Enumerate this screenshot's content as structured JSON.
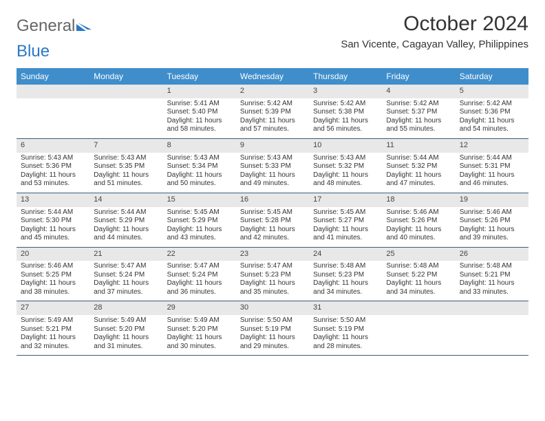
{
  "brand": {
    "part1": "General",
    "part2": "Blue"
  },
  "title": "October 2024",
  "subtitle": "San Vicente, Cagayan Valley, Philippines",
  "header_bg": "#3f8ecb",
  "header_fg": "#ffffff",
  "daynum_bg": "#e8e8e8",
  "week_border": "#3a5d7a",
  "day_names": [
    "Sunday",
    "Monday",
    "Tuesday",
    "Wednesday",
    "Thursday",
    "Friday",
    "Saturday"
  ],
  "weeks": [
    [
      {
        "n": "",
        "sunrise": "",
        "sunset": "",
        "daylight": ""
      },
      {
        "n": "",
        "sunrise": "",
        "sunset": "",
        "daylight": ""
      },
      {
        "n": "1",
        "sunrise": "Sunrise: 5:41 AM",
        "sunset": "Sunset: 5:40 PM",
        "daylight": "Daylight: 11 hours and 58 minutes."
      },
      {
        "n": "2",
        "sunrise": "Sunrise: 5:42 AM",
        "sunset": "Sunset: 5:39 PM",
        "daylight": "Daylight: 11 hours and 57 minutes."
      },
      {
        "n": "3",
        "sunrise": "Sunrise: 5:42 AM",
        "sunset": "Sunset: 5:38 PM",
        "daylight": "Daylight: 11 hours and 56 minutes."
      },
      {
        "n": "4",
        "sunrise": "Sunrise: 5:42 AM",
        "sunset": "Sunset: 5:37 PM",
        "daylight": "Daylight: 11 hours and 55 minutes."
      },
      {
        "n": "5",
        "sunrise": "Sunrise: 5:42 AM",
        "sunset": "Sunset: 5:36 PM",
        "daylight": "Daylight: 11 hours and 54 minutes."
      }
    ],
    [
      {
        "n": "6",
        "sunrise": "Sunrise: 5:43 AM",
        "sunset": "Sunset: 5:36 PM",
        "daylight": "Daylight: 11 hours and 53 minutes."
      },
      {
        "n": "7",
        "sunrise": "Sunrise: 5:43 AM",
        "sunset": "Sunset: 5:35 PM",
        "daylight": "Daylight: 11 hours and 51 minutes."
      },
      {
        "n": "8",
        "sunrise": "Sunrise: 5:43 AM",
        "sunset": "Sunset: 5:34 PM",
        "daylight": "Daylight: 11 hours and 50 minutes."
      },
      {
        "n": "9",
        "sunrise": "Sunrise: 5:43 AM",
        "sunset": "Sunset: 5:33 PM",
        "daylight": "Daylight: 11 hours and 49 minutes."
      },
      {
        "n": "10",
        "sunrise": "Sunrise: 5:43 AM",
        "sunset": "Sunset: 5:32 PM",
        "daylight": "Daylight: 11 hours and 48 minutes."
      },
      {
        "n": "11",
        "sunrise": "Sunrise: 5:44 AM",
        "sunset": "Sunset: 5:32 PM",
        "daylight": "Daylight: 11 hours and 47 minutes."
      },
      {
        "n": "12",
        "sunrise": "Sunrise: 5:44 AM",
        "sunset": "Sunset: 5:31 PM",
        "daylight": "Daylight: 11 hours and 46 minutes."
      }
    ],
    [
      {
        "n": "13",
        "sunrise": "Sunrise: 5:44 AM",
        "sunset": "Sunset: 5:30 PM",
        "daylight": "Daylight: 11 hours and 45 minutes."
      },
      {
        "n": "14",
        "sunrise": "Sunrise: 5:44 AM",
        "sunset": "Sunset: 5:29 PM",
        "daylight": "Daylight: 11 hours and 44 minutes."
      },
      {
        "n": "15",
        "sunrise": "Sunrise: 5:45 AM",
        "sunset": "Sunset: 5:29 PM",
        "daylight": "Daylight: 11 hours and 43 minutes."
      },
      {
        "n": "16",
        "sunrise": "Sunrise: 5:45 AM",
        "sunset": "Sunset: 5:28 PM",
        "daylight": "Daylight: 11 hours and 42 minutes."
      },
      {
        "n": "17",
        "sunrise": "Sunrise: 5:45 AM",
        "sunset": "Sunset: 5:27 PM",
        "daylight": "Daylight: 11 hours and 41 minutes."
      },
      {
        "n": "18",
        "sunrise": "Sunrise: 5:46 AM",
        "sunset": "Sunset: 5:26 PM",
        "daylight": "Daylight: 11 hours and 40 minutes."
      },
      {
        "n": "19",
        "sunrise": "Sunrise: 5:46 AM",
        "sunset": "Sunset: 5:26 PM",
        "daylight": "Daylight: 11 hours and 39 minutes."
      }
    ],
    [
      {
        "n": "20",
        "sunrise": "Sunrise: 5:46 AM",
        "sunset": "Sunset: 5:25 PM",
        "daylight": "Daylight: 11 hours and 38 minutes."
      },
      {
        "n": "21",
        "sunrise": "Sunrise: 5:47 AM",
        "sunset": "Sunset: 5:24 PM",
        "daylight": "Daylight: 11 hours and 37 minutes."
      },
      {
        "n": "22",
        "sunrise": "Sunrise: 5:47 AM",
        "sunset": "Sunset: 5:24 PM",
        "daylight": "Daylight: 11 hours and 36 minutes."
      },
      {
        "n": "23",
        "sunrise": "Sunrise: 5:47 AM",
        "sunset": "Sunset: 5:23 PM",
        "daylight": "Daylight: 11 hours and 35 minutes."
      },
      {
        "n": "24",
        "sunrise": "Sunrise: 5:48 AM",
        "sunset": "Sunset: 5:23 PM",
        "daylight": "Daylight: 11 hours and 34 minutes."
      },
      {
        "n": "25",
        "sunrise": "Sunrise: 5:48 AM",
        "sunset": "Sunset: 5:22 PM",
        "daylight": "Daylight: 11 hours and 34 minutes."
      },
      {
        "n": "26",
        "sunrise": "Sunrise: 5:48 AM",
        "sunset": "Sunset: 5:21 PM",
        "daylight": "Daylight: 11 hours and 33 minutes."
      }
    ],
    [
      {
        "n": "27",
        "sunrise": "Sunrise: 5:49 AM",
        "sunset": "Sunset: 5:21 PM",
        "daylight": "Daylight: 11 hours and 32 minutes."
      },
      {
        "n": "28",
        "sunrise": "Sunrise: 5:49 AM",
        "sunset": "Sunset: 5:20 PM",
        "daylight": "Daylight: 11 hours and 31 minutes."
      },
      {
        "n": "29",
        "sunrise": "Sunrise: 5:49 AM",
        "sunset": "Sunset: 5:20 PM",
        "daylight": "Daylight: 11 hours and 30 minutes."
      },
      {
        "n": "30",
        "sunrise": "Sunrise: 5:50 AM",
        "sunset": "Sunset: 5:19 PM",
        "daylight": "Daylight: 11 hours and 29 minutes."
      },
      {
        "n": "31",
        "sunrise": "Sunrise: 5:50 AM",
        "sunset": "Sunset: 5:19 PM",
        "daylight": "Daylight: 11 hours and 28 minutes."
      },
      {
        "n": "",
        "sunrise": "",
        "sunset": "",
        "daylight": ""
      },
      {
        "n": "",
        "sunrise": "",
        "sunset": "",
        "daylight": ""
      }
    ]
  ]
}
